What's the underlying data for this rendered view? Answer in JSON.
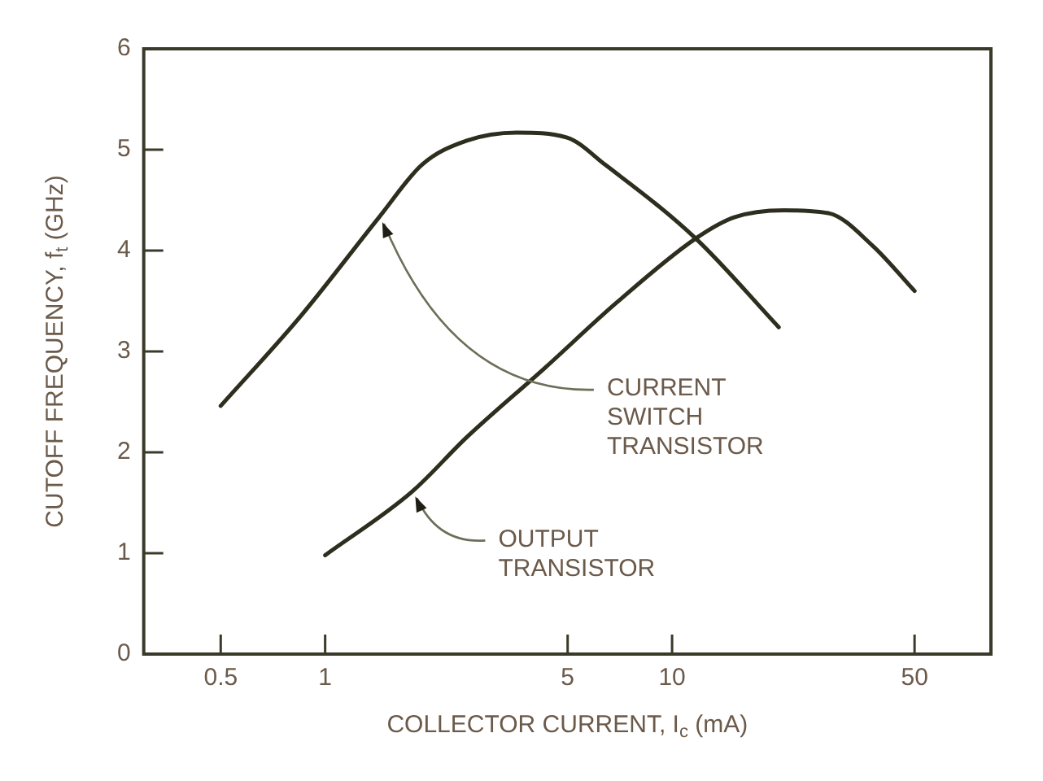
{
  "chart_data": {
    "type": "line",
    "xlabel": "COLLECTOR CURRENT, I$_{c}$ (mA)",
    "ylabel": "CUTOFF FREQUENCY, f$_{t}$ (GHz)",
    "log": "x",
    "xlim": [
      0.3,
      83
    ],
    "xticks": [
      0.5,
      1,
      5,
      10,
      50
    ],
    "ylim": [
      0,
      6
    ],
    "yticks": [
      0,
      1,
      2,
      3,
      4,
      5,
      6
    ],
    "grid": false,
    "legend": false,
    "marker": "none",
    "line_style": "solid",
    "series": [
      {
        "color": "#2e2e1e",
        "x": [
          0.5,
          0.85,
          1.43,
          1.9,
          2.56,
          3.57,
          4.98,
          6.42,
          11.7,
          20.3
        ],
        "values": [
          2.46,
          3.35,
          4.33,
          4.85,
          5.09,
          5.17,
          5.12,
          4.85,
          4.12,
          3.24
        ]
      },
      {
        "color": "#2e2e1e",
        "x": [
          1,
          1.78,
          2.56,
          4.31,
          6.9,
          11.7,
          15.1,
          21,
          28.3,
          37.8,
          50
        ],
        "values": [
          0.98,
          1.61,
          2.15,
          2.84,
          3.48,
          4.12,
          4.33,
          4.4,
          4.37,
          4.05,
          3.6
        ]
      }
    ],
    "annotations": [
      {
        "text": "CURRENT\nSWITCH\nTRANSISTOR",
        "x": 1.43,
        "y": 4.33
      },
      {
        "text": "OUTPUT\nTRANSISTOR",
        "x": 1.78,
        "y": 1.61
      }
    ]
  }
}
